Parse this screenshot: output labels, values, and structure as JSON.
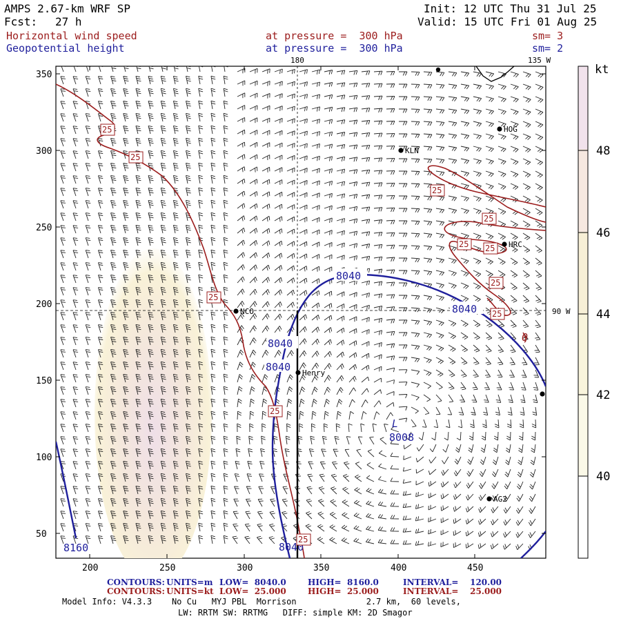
{
  "header": {
    "model": "AMPS 2.67-km WRF SP",
    "fcst_label": "Fcst:",
    "fcst_value": "27 h",
    "init": "Init: 12 UTC Thu 31 Jul 25",
    "valid": "Valid: 15 UTC Fri 01 Aug 25",
    "field1_name": "Horizontal wind speed",
    "field1_level": "at pressure =  300 hPa",
    "field1_sm": "sm= 3",
    "field2_name": "Geopotential height",
    "field2_level": "at pressure =  300 hPa",
    "field2_sm": "sm= 2"
  },
  "map": {
    "x_ticks": [
      "200",
      "250",
      "300",
      "350",
      "400",
      "450"
    ],
    "y_ticks": [
      "350",
      "300",
      "250",
      "200",
      "150",
      "100",
      "50"
    ],
    "meridian_labels": {
      "top_180": "180",
      "top_135w": "135 W",
      "right_90w": "90 W"
    },
    "stations": [
      {
        "name": "HOG"
      },
      {
        "name": "KLN"
      },
      {
        "name": "HRC"
      },
      {
        "name": "NCO"
      },
      {
        "name": "Henry"
      },
      {
        "name": "AG2"
      }
    ],
    "low": {
      "symbol": "L",
      "value": "8008"
    },
    "height_labels": [
      "8040",
      "8040",
      "8040",
      "8040",
      "8040",
      "8160"
    ],
    "speed_labels": [
      "25",
      "25",
      "25",
      "25",
      "25",
      "25",
      "25",
      "25",
      "25",
      "25",
      "25"
    ],
    "contour_zero": "0"
  },
  "colorbar": {
    "unit": "kt",
    "ticks": [
      "48",
      "46",
      "44",
      "42",
      "40"
    ],
    "colors": [
      "#f1e2ec",
      "#f6e8e0",
      "#f7efd6",
      "#f9f4dc",
      "#fbf9e8"
    ]
  },
  "footer": {
    "row1": {
      "contours": "CONTOURS:",
      "units": "UNITS=m",
      "low": "LOW=  8040.0",
      "high": "HIGH=  8160.0",
      "interval": "INTERVAL=    120.00"
    },
    "row2": {
      "contours": "CONTOURS:",
      "units": "UNITS=kt",
      "low": "LOW=  25.000",
      "high": "HIGH=  25.000",
      "interval": "INTERVAL=    25.000"
    },
    "info1": "Model Info: V4.3.3    No Cu   MYJ PBL  Morrison              2.7 km,  60 levels,",
    "info2": "LW: RRTM SW: RRTMG   DIFF: simple KM: 2D Smagor"
  },
  "style": {
    "red": "#9b1c1c",
    "blue": "#1f1f9c"
  }
}
